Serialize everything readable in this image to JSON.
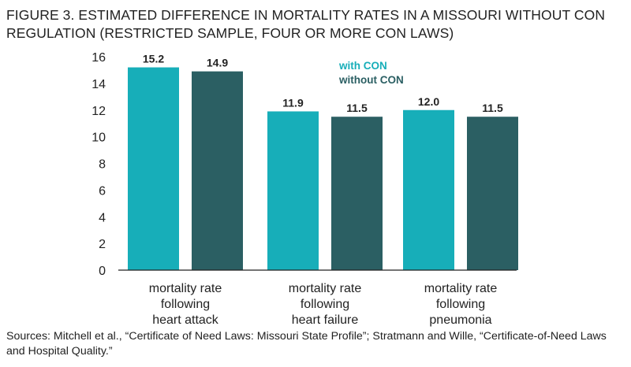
{
  "title": "FIGURE 3. ESTIMATED DIFFERENCE IN MORTALITY RATES IN A MISSOURI WITHOUT CON REGULATION (RESTRICTED SAMPLE, FOUR OR MORE CON LAWS)",
  "source": "Sources: Mitchell et al., “Certificate of Need Laws: Missouri State Profile”; Stratmann and Wille, “Certificate-of-Need Laws and Hospital Quality.”",
  "colors": {
    "with_con": "#17aeb9",
    "without_con": "#2b5f63",
    "axis": "#222222",
    "label": "#222222"
  },
  "chart_data": {
    "type": "bar",
    "categories": [
      [
        "mortality rate",
        "following",
        "heart attack"
      ],
      [
        "mortality rate",
        "following",
        "heart failure"
      ],
      [
        "mortality rate",
        "following",
        "pneumonia"
      ]
    ],
    "series": [
      {
        "name": "with CON",
        "values": [
          15.2,
          11.9,
          12.0
        ],
        "labels": [
          "15.2",
          "11.9",
          "12.0"
        ]
      },
      {
        "name": "without CON",
        "values": [
          14.9,
          11.5,
          11.5
        ],
        "labels": [
          "14.9",
          "11.5",
          "11.5"
        ]
      }
    ],
    "ylim": [
      0,
      16
    ],
    "yticks": [
      "0",
      "2",
      "4",
      "6",
      "8",
      "10",
      "12",
      "14",
      "16"
    ],
    "xlabel": "",
    "ylabel": "",
    "grid": false,
    "legend": "top-right"
  }
}
